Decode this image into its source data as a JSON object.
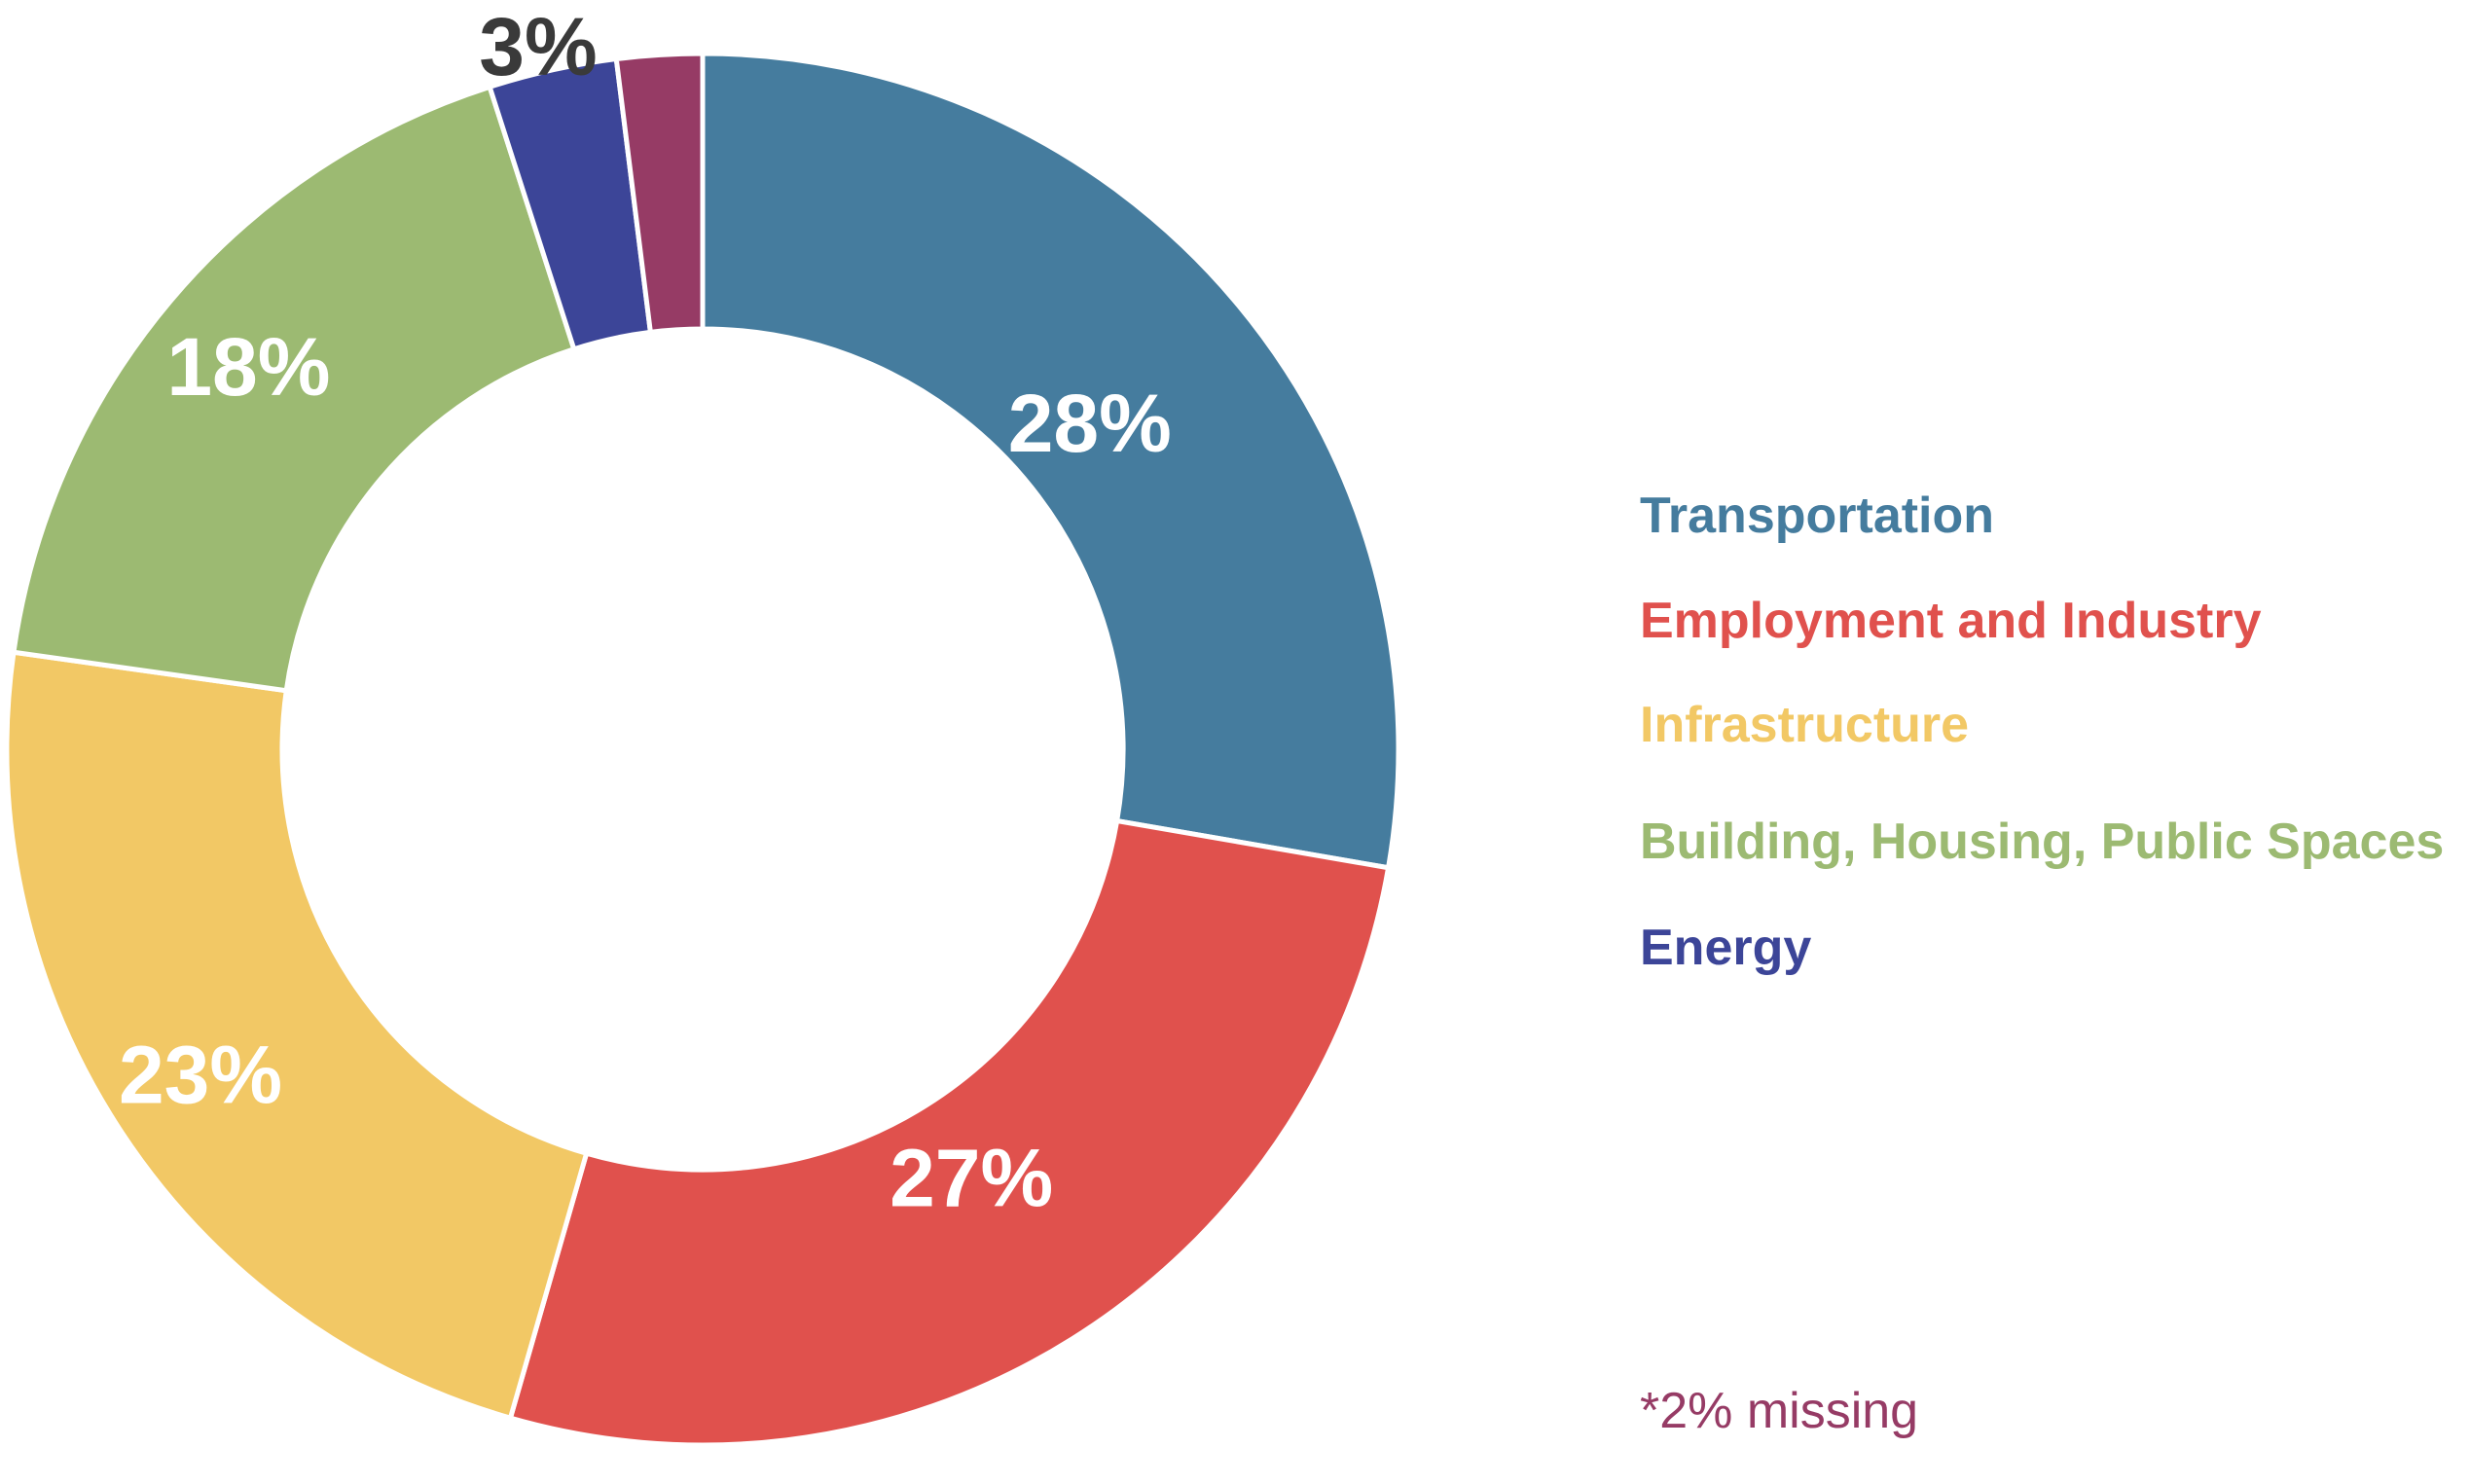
{
  "chart_data": {
    "type": "pie",
    "donut": true,
    "title": "",
    "slices": [
      {
        "name": "Transportation",
        "value": 28,
        "label": "28%",
        "color": "#457C9E",
        "label_color": "#ffffff"
      },
      {
        "name": "Employment and Industry",
        "value": 27,
        "label": "27%",
        "color": "#E0514D",
        "label_color": "#ffffff"
      },
      {
        "name": "Infrastructure",
        "value": 23,
        "label": "23%",
        "color": "#F2C865",
        "label_color": "#ffffff"
      },
      {
        "name": "Building, Housing, Public Spaces",
        "value": 18,
        "label": "18%",
        "color": "#9CBA72",
        "label_color": "#ffffff"
      },
      {
        "name": "Energy",
        "value": 3,
        "label": "3%",
        "color": "#3C4598",
        "label_color": "#3a3a3a"
      },
      {
        "name": "",
        "value": 2,
        "label": "",
        "color": "#963B65",
        "label_color": "#ffffff"
      }
    ],
    "legend_placement": "right",
    "legend": [
      {
        "name": "Transportation",
        "color": "#457C9E"
      },
      {
        "name": "Employment and Industry",
        "color": "#E0514D"
      },
      {
        "name": "Infrastructure",
        "color": "#F2C865"
      },
      {
        "name": "Building, Housing, Public Spaces",
        "color": "#9CBA72"
      },
      {
        "name": "Energy",
        "color": "#3C4598"
      }
    ],
    "note": {
      "text": "*2% missing",
      "color": "#963B65"
    }
  }
}
